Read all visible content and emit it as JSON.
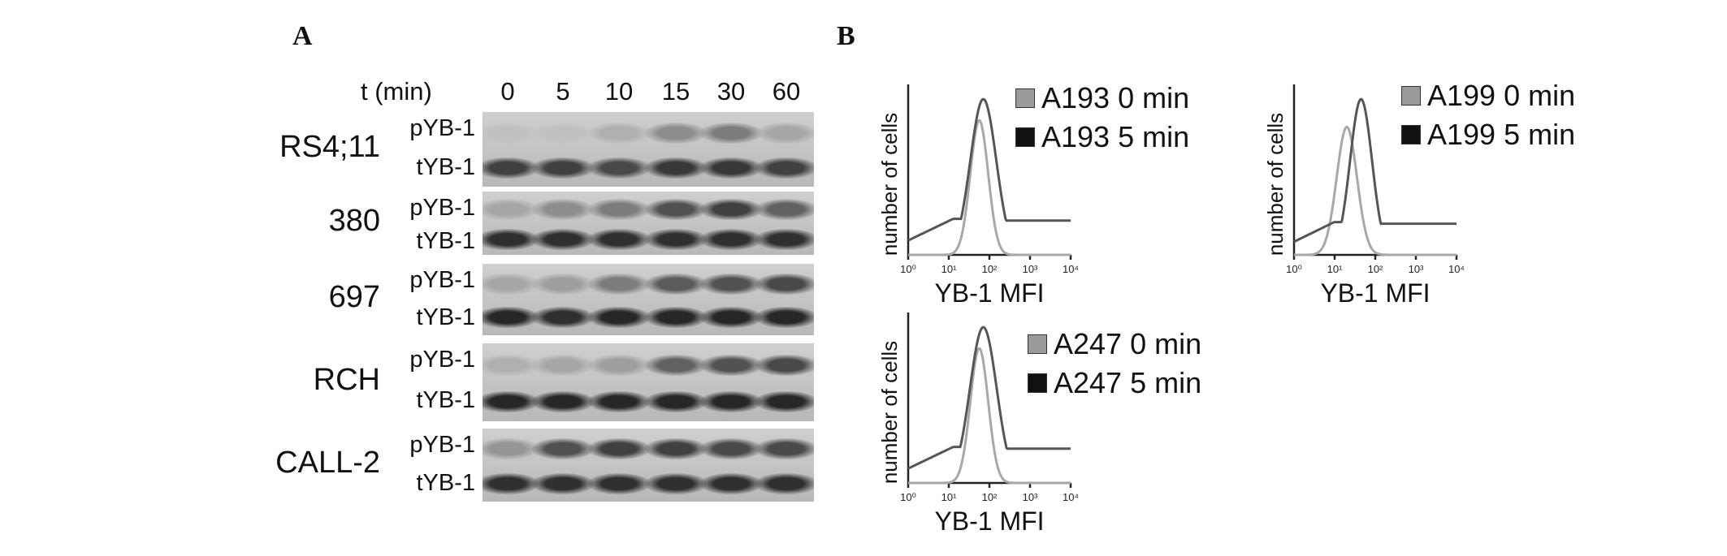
{
  "panel_a": {
    "letter": "A",
    "time_label": "t (min)",
    "timepoints": [
      "0",
      "5",
      "10",
      "15",
      "30",
      "60"
    ],
    "rows": [
      {
        "cell_line": "RS4;11",
        "top_label": "pYB-1",
        "bottom_label": "tYB-1",
        "p_intensity": [
          0.05,
          0.05,
          0.15,
          0.35,
          0.45,
          0.2
        ],
        "t_intensity": [
          0.8,
          0.8,
          0.75,
          0.85,
          0.85,
          0.8
        ]
      },
      {
        "cell_line": "380",
        "top_label": "pYB-1",
        "bottom_label": "tYB-1",
        "p_intensity": [
          0.2,
          0.35,
          0.45,
          0.7,
          0.8,
          0.6
        ],
        "t_intensity": [
          0.9,
          0.9,
          0.9,
          0.9,
          0.9,
          0.9
        ]
      },
      {
        "cell_line": "697",
        "top_label": "pYB-1",
        "bottom_label": "tYB-1",
        "p_intensity": [
          0.2,
          0.25,
          0.45,
          0.65,
          0.7,
          0.75
        ],
        "t_intensity": [
          0.95,
          0.9,
          0.95,
          0.95,
          0.95,
          0.95
        ]
      },
      {
        "cell_line": "RCH",
        "top_label": "pYB-1",
        "bottom_label": "tYB-1",
        "p_intensity": [
          0.15,
          0.2,
          0.25,
          0.6,
          0.7,
          0.75
        ],
        "t_intensity": [
          0.95,
          0.95,
          0.95,
          0.95,
          0.95,
          0.95
        ]
      },
      {
        "cell_line": "CALL-2",
        "top_label": "pYB-1",
        "bottom_label": "tYB-1",
        "p_intensity": [
          0.3,
          0.7,
          0.8,
          0.8,
          0.75,
          0.75
        ],
        "t_intensity": [
          0.9,
          0.9,
          0.9,
          0.9,
          0.9,
          0.9
        ]
      }
    ]
  },
  "panel_b": {
    "letter": "B",
    "plots": [
      {
        "ylabel": "number of cells",
        "xlabel": "YB-1 MFI",
        "x_ticks": [
          "10⁰",
          "10¹",
          "10²",
          "10³",
          "10⁴"
        ],
        "legend": [
          {
            "label": "A193 0 min",
            "color": "#9a9a9a"
          },
          {
            "label": "A193 5 min",
            "color": "#111111"
          }
        ],
        "series": [
          {
            "name": "A193 0 min",
            "color": "#a8a8a8",
            "peak_log": 1.75,
            "width_log": 0.22,
            "height": 0.82,
            "baseline": 0.0
          },
          {
            "name": "A193 5 min",
            "color": "#555555",
            "peak_log": 1.85,
            "width_log": 0.32,
            "height": 0.95,
            "baseline": 0.22
          }
        ]
      },
      {
        "ylabel": "number of cells",
        "xlabel": "YB-1 MFI",
        "x_ticks": [
          "10⁰",
          "10¹",
          "10²",
          "10³",
          "10⁴"
        ],
        "legend": [
          {
            "label": "A199 0 min",
            "color": "#9a9a9a"
          },
          {
            "label": "A199 5 min",
            "color": "#111111"
          }
        ],
        "series": [
          {
            "name": "A199 0 min",
            "color": "#a8a8a8",
            "peak_log": 1.3,
            "width_log": 0.25,
            "height": 0.78,
            "baseline": 0.0
          },
          {
            "name": "A199 5 min",
            "color": "#555555",
            "peak_log": 1.65,
            "width_log": 0.27,
            "height": 0.95,
            "baseline": 0.2
          }
        ]
      },
      {
        "ylabel": "number of cells",
        "xlabel": "YB-1 MFI",
        "x_ticks": [
          "10⁰",
          "10¹",
          "10²",
          "10³",
          "10⁴"
        ],
        "legend": [
          {
            "label": "A247 0 min",
            "color": "#9a9a9a"
          },
          {
            "label": "A247 5 min",
            "color": "#111111"
          }
        ],
        "series": [
          {
            "name": "A247 0 min",
            "color": "#a8a8a8",
            "peak_log": 1.75,
            "width_log": 0.22,
            "height": 0.82,
            "baseline": 0.0
          },
          {
            "name": "A247 5 min",
            "color": "#555555",
            "peak_log": 1.85,
            "width_log": 0.33,
            "height": 0.95,
            "baseline": 0.22
          }
        ]
      }
    ]
  }
}
